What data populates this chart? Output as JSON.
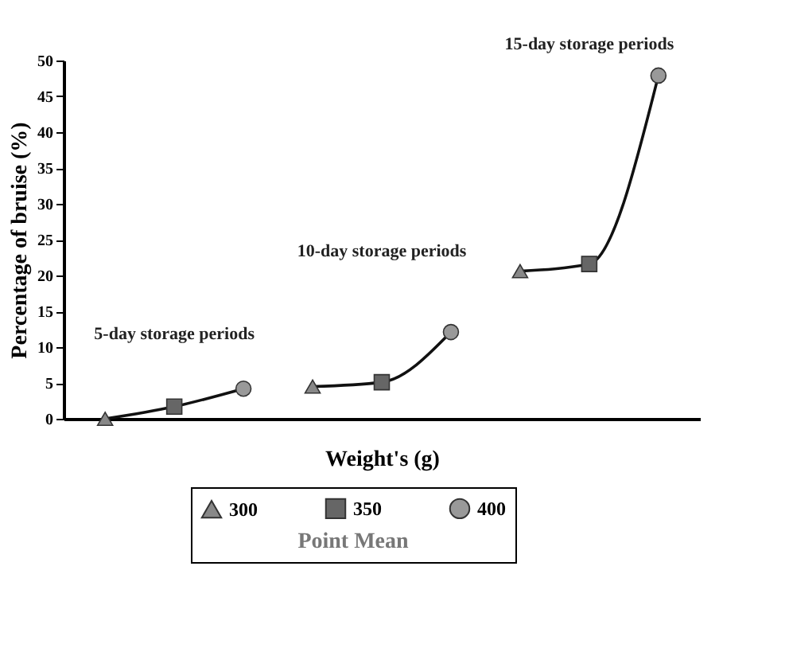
{
  "chart_data": {
    "type": "line",
    "ylabel": "Percentage of bruise (%)",
    "xlabel": "Weight's (g)",
    "legend_title": "Point Mean",
    "categories": [
      null,
      null,
      null,
      null,
      null,
      null,
      null,
      null,
      null
    ],
    "series": [
      {
        "type": "line",
        "color": "#111111",
        "marker": "none",
        "values": [
          0,
          1.7,
          4.2,
          null,
          null,
          null,
          null,
          null,
          null
        ]
      },
      {
        "type": "line",
        "color": "#111111",
        "marker": "none",
        "values": [
          null,
          null,
          null,
          4.5,
          5.1,
          12.1,
          null,
          null,
          null
        ]
      },
      {
        "type": "line",
        "color": "#111111",
        "marker": "none",
        "values": [
          null,
          null,
          null,
          null,
          null,
          null,
          20.6,
          21.6,
          47.9
        ]
      },
      {
        "type": "scatter",
        "name": "300",
        "color": "#888888",
        "marker": "triangle",
        "values": [
          0,
          null,
          null,
          4.5,
          null,
          null,
          20.6,
          null,
          null
        ]
      },
      {
        "type": "scatter",
        "name": "350",
        "color": "#666666",
        "marker": "square",
        "values": [
          null,
          1.7,
          null,
          null,
          5.1,
          null,
          null,
          21.6,
          null
        ]
      },
      {
        "type": "scatter",
        "name": "400",
        "color": "#999999",
        "marker": "circle",
        "values": [
          null,
          null,
          4.2,
          null,
          null,
          12.1,
          null,
          null,
          47.9
        ]
      }
    ],
    "ylim": [
      0,
      50
    ],
    "yticks": [
      0,
      5,
      10,
      15,
      20,
      25,
      30,
      35,
      40,
      45,
      50
    ],
    "grid": false,
    "legend": "bottom",
    "tick_labels": "y",
    "annotations": [
      "5-day storage periods",
      "10-day storage periods",
      "15-day storage periods"
    ]
  }
}
